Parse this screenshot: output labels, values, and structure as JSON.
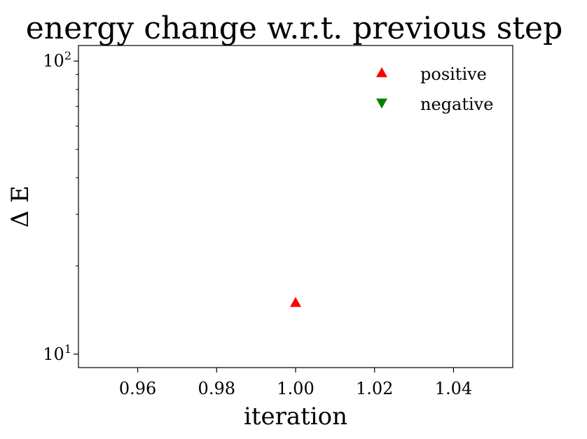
{
  "chart_data": {
    "type": "scatter",
    "title": "energy change w.r.t. previous step",
    "xlabel": "iteration",
    "ylabel": "Δ E",
    "xlim": [
      0.945,
      1.055
    ],
    "ylim": [
      9.0,
      113.0
    ],
    "yscale": "log",
    "grid": false,
    "legend_position": "top-right",
    "x_ticks": [
      {
        "value": 0.96,
        "label": "0.96"
      },
      {
        "value": 0.98,
        "label": "0.98"
      },
      {
        "value": 1.0,
        "label": "1.00"
      },
      {
        "value": 1.02,
        "label": "1.02"
      },
      {
        "value": 1.04,
        "label": "1.04"
      }
    ],
    "y_major_ticks": [
      {
        "value": 10,
        "base": "10",
        "exp": "1"
      },
      {
        "value": 100,
        "base": "10",
        "exp": "2"
      }
    ],
    "y_minor_ticks": [
      20,
      30,
      40,
      50,
      60,
      70,
      80,
      90
    ],
    "series": [
      {
        "name": "positive",
        "marker": "triangle-up",
        "color": "#ff0000",
        "points": [
          {
            "x": 1.0,
            "y": 15.0
          }
        ]
      },
      {
        "name": "negative",
        "marker": "triangle-down",
        "color": "#008000",
        "points": []
      }
    ]
  }
}
